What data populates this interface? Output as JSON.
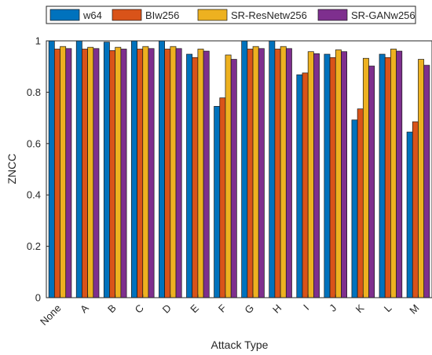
{
  "chart_data": {
    "type": "bar",
    "title": "",
    "xlabel": "Attack Type",
    "ylabel": "ZNCC",
    "ylim": [
      0,
      1
    ],
    "yticks": [
      "0",
      "0.2",
      "0.4",
      "0.6",
      "0.8",
      "1"
    ],
    "grid": false,
    "legend_position": "top",
    "categories": [
      "None",
      "A",
      "B",
      "C",
      "D",
      "E",
      "F",
      "G",
      "H",
      "I",
      "J",
      "K",
      "L",
      "M"
    ],
    "series": [
      {
        "name": "w64",
        "color": "#0072BD",
        "values": [
          1.0,
          1.0,
          0.995,
          1.0,
          1.0,
          0.948,
          0.745,
          1.0,
          1.0,
          0.868,
          0.948,
          0.692,
          0.948,
          0.645
        ]
      },
      {
        "name": "BIw256",
        "color": "#D95319",
        "values": [
          0.968,
          0.968,
          0.962,
          0.968,
          0.968,
          0.935,
          0.778,
          0.968,
          0.968,
          0.875,
          0.935,
          0.735,
          0.935,
          0.685
        ]
      },
      {
        "name": "SR-ResNetw256",
        "color": "#EDB120",
        "values": [
          0.978,
          0.975,
          0.975,
          0.978,
          0.978,
          0.968,
          0.945,
          0.978,
          0.978,
          0.958,
          0.965,
          0.932,
          0.968,
          0.928
        ]
      },
      {
        "name": "SR-GANw256",
        "color": "#7E2F8E",
        "values": [
          0.97,
          0.97,
          0.968,
          0.97,
          0.97,
          0.96,
          0.928,
          0.97,
          0.97,
          0.95,
          0.958,
          0.902,
          0.96,
          0.905
        ]
      }
    ]
  }
}
